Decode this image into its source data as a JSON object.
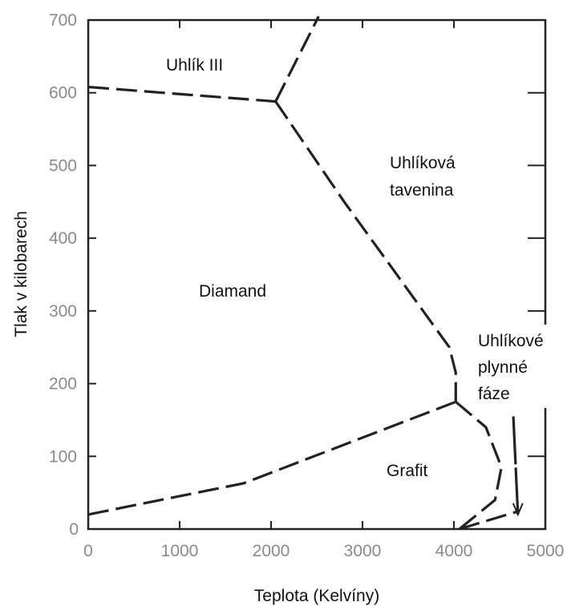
{
  "chart_data": {
    "type": "line",
    "title": "",
    "xlabel": "Teplota (Kelvíny)",
    "ylabel": "Tlak v kilobarech",
    "xlim": [
      0,
      5000
    ],
    "ylim": [
      0,
      700
    ],
    "xticks": [
      0,
      1000,
      2000,
      3000,
      4000,
      5000
    ],
    "xtick_labels": [
      "0",
      "1000",
      "2000",
      "3000",
      "4000",
      "5000"
    ],
    "yticks": [
      0,
      100,
      200,
      300,
      400,
      500,
      600,
      700
    ],
    "ytick_labels": [
      "0",
      "100",
      "200",
      "300",
      "400",
      "500",
      "600",
      "700"
    ],
    "grid": false,
    "line_style": "dashed",
    "regions": [
      {
        "label": "Uhlík III"
      },
      {
        "label": "Uhlíková tavenina"
      },
      {
        "label": "Diamand"
      },
      {
        "label": "Uhlíkové plynné fáze"
      },
      {
        "label": "Grafit"
      }
    ],
    "series": [
      {
        "x": [
          0,
          2050
        ],
        "y": [
          608,
          588
        ]
      },
      {
        "x": [
          2050,
          2520
        ],
        "y": [
          588,
          705
        ]
      },
      {
        "x": [
          2050,
          2800,
          3950,
          4020,
          4020
        ],
        "y": [
          588,
          450,
          250,
          215,
          175
        ]
      },
      {
        "x": [
          0,
          1700,
          4020
        ],
        "y": [
          20,
          63,
          175
        ]
      },
      {
        "x": [
          4020,
          4350,
          4520,
          4450,
          4060
        ],
        "y": [
          175,
          140,
          85,
          40,
          0
        ]
      },
      {
        "x": [
          4060,
          4720
        ],
        "y": [
          0,
          25
        ]
      },
      {
        "x": [
          4650,
          4700
        ],
        "y": [
          155,
          20
        ]
      }
    ]
  }
}
